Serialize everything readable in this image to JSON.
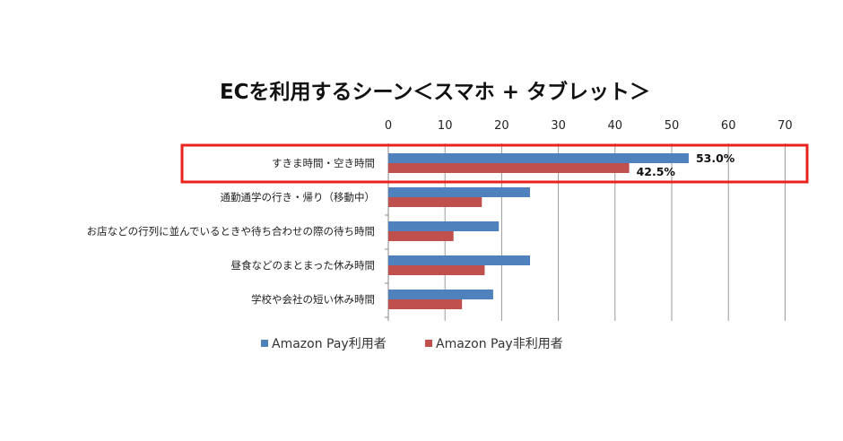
{
  "chart_data": {
    "type": "bar",
    "orientation": "horizontal",
    "title": "ECを利用するシーン＜スマホ + タブレット＞",
    "categories": [
      "すきま時間・空き時間",
      "通勤通学の行き・帰り（移動中）",
      "お店などの行列に並んでいるときや待ち合わせの際の待ち時間",
      "昼食などのまとまった休み時間",
      "学校や会社の短い休み時間"
    ],
    "series": [
      {
        "name": "Amazon Pay利用者",
        "color": "#4F81BD",
        "values": [
          53.0,
          25.0,
          19.5,
          25.0,
          18.5
        ]
      },
      {
        "name": "Amazon Pay非利用者",
        "color": "#C0504D",
        "values": [
          42.5,
          16.5,
          11.5,
          17.0,
          13.0
        ]
      }
    ],
    "data_labels": [
      {
        "series": 0,
        "category": 0,
        "text": "53.0%"
      },
      {
        "series": 1,
        "category": 0,
        "text": "42.5%"
      }
    ],
    "xlim": [
      0,
      70
    ],
    "xticks": [
      0,
      10,
      20,
      30,
      40,
      50,
      60,
      70
    ],
    "axis_position": "top",
    "grid": true,
    "legend_position": "bottom",
    "highlight": {
      "category": 0,
      "color": "#E8231F"
    }
  }
}
